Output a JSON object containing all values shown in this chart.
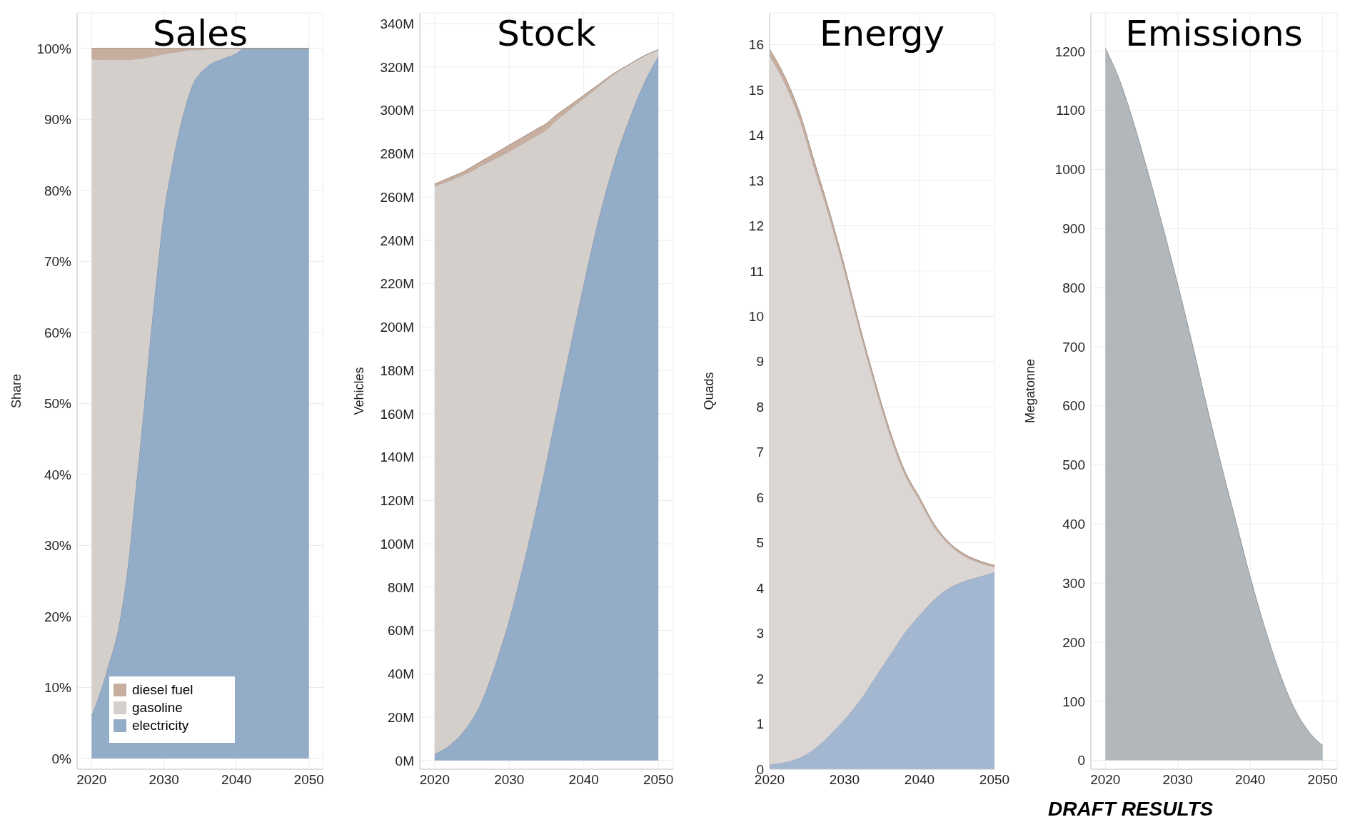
{
  "chart_data": [
    {
      "type": "area",
      "title": "Sales",
      "ylabel": "Share",
      "stacked": true,
      "grid": true,
      "legend": "bottom left",
      "x": [
        2020,
        2022,
        2024,
        2025,
        2026,
        2027,
        2028,
        2029,
        2030,
        2031,
        2032,
        2033,
        2034,
        2035,
        2036,
        2038,
        2040,
        2041,
        2045,
        2050
      ],
      "series": [
        {
          "name": "electricity",
          "color": "#93acc8",
          "values": [
            6,
            12,
            20,
            27,
            37,
            47,
            58,
            68,
            77,
            83,
            88,
            92,
            95,
            96.5,
            97.5,
            98.5,
            99.3,
            100,
            100,
            100
          ]
        },
        {
          "name": "gasoline",
          "color": "#d5cfcb",
          "values": [
            92.5,
            86.4,
            78.4,
            71.4,
            61.5,
            51.6,
            40.8,
            31,
            22.2,
            16.4,
            11.5,
            7.7,
            4.8,
            3.3,
            2.4,
            1.5,
            0.7,
            0,
            0,
            0
          ]
        },
        {
          "name": "diesel fuel",
          "color": "#c7ae9f",
          "values": [
            1.5,
            1.6,
            1.6,
            1.6,
            1.5,
            1.4,
            1.2,
            1,
            0.8,
            0.6,
            0.5,
            0.3,
            0.2,
            0.2,
            0.1,
            0,
            0,
            0,
            0,
            0
          ]
        }
      ],
      "xlim": [
        2018,
        2052
      ],
      "xticks": [
        2020,
        2030,
        2040,
        2050
      ],
      "ylim": [
        -1.5,
        105
      ],
      "yticks": [
        {
          "value": 0,
          "label": "0%"
        },
        {
          "value": 10,
          "label": "10%"
        },
        {
          "value": 20,
          "label": "20%"
        },
        {
          "value": 30,
          "label": "30%"
        },
        {
          "value": 40,
          "label": "40%"
        },
        {
          "value": 50,
          "label": "50%"
        },
        {
          "value": 60,
          "label": "60%"
        },
        {
          "value": 70,
          "label": "70%"
        },
        {
          "value": 80,
          "label": "80%"
        },
        {
          "value": 90,
          "label": "90%"
        },
        {
          "value": 100,
          "label": "100%"
        }
      ]
    },
    {
      "type": "area",
      "title": "Stock",
      "ylabel": "Vehicles",
      "stacked": true,
      "grid": true,
      "x": [
        2020,
        2022,
        2024,
        2025,
        2026,
        2028,
        2030,
        2032,
        2034,
        2035,
        2036,
        2038,
        2040,
        2042,
        2044,
        2046,
        2048,
        2050
      ],
      "series": [
        {
          "color": "#93acc8",
          "values": [
            3,
            7,
            14,
            19,
            25,
            43,
            65,
            92,
            122,
            138,
            155,
            188,
            220,
            250,
            275,
            295,
            312,
            325
          ]
        },
        {
          "color": "#d5cfcb",
          "values": [
            262,
            260.5,
            256.5,
            253,
            249,
            234.5,
            216,
            193,
            167,
            153,
            139.5,
            112,
            85.5,
            61,
            41.5,
            26,
            13,
            3
          ]
        },
        {
          "color": "#c7ae9f",
          "values": [
            1,
            1.5,
            1.5,
            2,
            2,
            2.5,
            3,
            3,
            3,
            3,
            2.5,
            2,
            1.5,
            1,
            0.5,
            0,
            0,
            0
          ]
        }
      ],
      "xlim": [
        2018,
        2052
      ],
      "xticks": [
        2020,
        2030,
        2040,
        2050
      ],
      "ylim": [
        -4,
        345
      ],
      "yticks": [
        {
          "value": 0,
          "label": "0M"
        },
        {
          "value": 20,
          "label": "20M"
        },
        {
          "value": 40,
          "label": "40M"
        },
        {
          "value": 60,
          "label": "60M"
        },
        {
          "value": 80,
          "label": "80M"
        },
        {
          "value": 100,
          "label": "100M"
        },
        {
          "value": 120,
          "label": "120M"
        },
        {
          "value": 140,
          "label": "140M"
        },
        {
          "value": 160,
          "label": "160M"
        },
        {
          "value": 180,
          "label": "180M"
        },
        {
          "value": 200,
          "label": "200M"
        },
        {
          "value": 220,
          "label": "220M"
        },
        {
          "value": 240,
          "label": "240M"
        },
        {
          "value": 260,
          "label": "260M"
        },
        {
          "value": 280,
          "label": "280M"
        },
        {
          "value": 300,
          "label": "300M"
        },
        {
          "value": 320,
          "label": "320M"
        },
        {
          "value": 340,
          "label": "340M"
        }
      ]
    },
    {
      "type": "area",
      "title": "Energy",
      "ylabel": "Quads",
      "stacked": true,
      "grid": true,
      "x": [
        2020,
        2022,
        2024,
        2026,
        2028,
        2030,
        2032,
        2034,
        2036,
        2038,
        2040,
        2042,
        2044,
        2046,
        2048,
        2050
      ],
      "series": [
        {
          "color": "#a3b8d0",
          "values": [
            0.1,
            0.15,
            0.25,
            0.45,
            0.75,
            1.1,
            1.5,
            2,
            2.5,
            3,
            3.4,
            3.75,
            4,
            4.15,
            4.25,
            4.35
          ]
        },
        {
          "color": "#dbd5d3",
          "values": [
            15.65,
            15,
            14.1,
            12.8,
            11.43,
            9.88,
            8.2,
            6.5,
            4.9,
            3.52,
            2.53,
            1.59,
            0.95,
            0.55,
            0.31,
            0.11
          ]
        },
        {
          "color": "#c7ae9f",
          "values": [
            0.15,
            0.15,
            0.15,
            0.15,
            0.12,
            0.12,
            0.1,
            0.1,
            0.1,
            0.08,
            0.07,
            0.06,
            0.05,
            0.05,
            0.04,
            0.04
          ]
        }
      ],
      "xlim": [
        2020,
        2050
      ],
      "xticks": [
        2020,
        2030,
        2040,
        2050
      ],
      "ylim": [
        0,
        16.7
      ],
      "yticks": [
        0,
        1,
        2,
        3,
        4,
        5,
        6,
        7,
        8,
        9,
        10,
        11,
        12,
        13,
        14,
        15,
        16
      ]
    },
    {
      "type": "area",
      "title": "Emissions",
      "ylabel": "Megatonne",
      "grid": true,
      "x": [
        2020,
        2022,
        2024,
        2026,
        2028,
        2030,
        2032,
        2034,
        2036,
        2038,
        2040,
        2042,
        2044,
        2046,
        2048,
        2050
      ],
      "values": [
        1205,
        1150,
        1075,
        990,
        900,
        805,
        705,
        600,
        500,
        405,
        310,
        225,
        150,
        90,
        50,
        25
      ],
      "color": "#b1b7bb",
      "xlim": [
        2018,
        2052
      ],
      "xticks": [
        2020,
        2030,
        2040,
        2050
      ],
      "ylim": [
        -15,
        1265
      ],
      "yticks": [
        0,
        100,
        200,
        300,
        400,
        500,
        600,
        700,
        800,
        900,
        1000,
        1100,
        1200
      ],
      "annotations": [
        "DRAFT RESULTS"
      ]
    }
  ]
}
